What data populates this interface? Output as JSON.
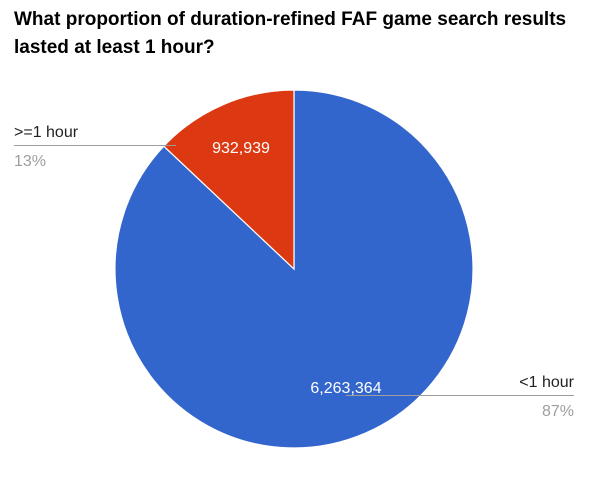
{
  "chart_data": {
    "type": "pie",
    "title": "What proportion of duration-refined FAF game search results lasted at least 1 hour?",
    "slices": [
      {
        "label": "<1 hour",
        "value": 6263364,
        "value_label": "6,263,364",
        "percent_label": "87%",
        "color": "#3366cc"
      },
      {
        "label": ">=1 hour",
        "value": 932939,
        "value_label": "932,939",
        "percent_label": "13%",
        "color": "#dc3912"
      }
    ],
    "legend": "labeled callouts",
    "start_angle_deg": 0,
    "direction": "clockwise"
  },
  "colors": {
    "leader_line": "#9e9e9e",
    "label_text": "#222222",
    "percent_text": "#9e9e9e",
    "slice_text": "#ffffff"
  }
}
